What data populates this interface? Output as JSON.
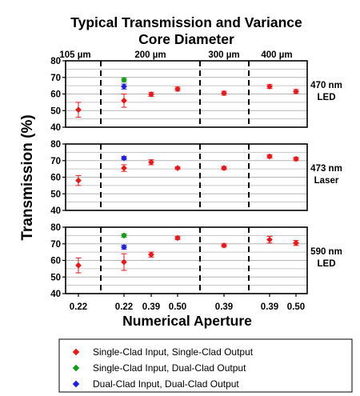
{
  "chart_data": {
    "type": "scatter",
    "title": [
      "Typical Transmission and Variance",
      "Core Diameter"
    ],
    "ylabel": "Transmission (%)",
    "xlabel": "Numerical Aperture",
    "ylim": [
      40,
      80
    ],
    "yticks": [
      "40",
      "50",
      "60",
      "70",
      "80"
    ],
    "grid": true,
    "core_diameters": [
      "105 µm",
      "200 µm",
      "300 µm",
      "400 µm"
    ],
    "categories": [
      "0.22",
      "0.22",
      "0.39",
      "0.50",
      "0.39",
      "0.39",
      "0.50"
    ],
    "panels": [
      {
        "label": [
          "470 nm",
          "LED"
        ],
        "series": [
          {
            "name": "Single-Clad Input, Single-Clad Output",
            "color": "#e31a1c",
            "marker": "diamond",
            "points": [
              {
                "cat": 0,
                "y": 50.5,
                "err": 4.5
              },
              {
                "cat": 1,
                "y": 56,
                "err": 4
              },
              {
                "cat": 2,
                "y": 59.8,
                "err": 1.2
              },
              {
                "cat": 3,
                "y": 63,
                "err": 1.2
              },
              {
                "cat": 4,
                "y": 60.5,
                "err": 1.2
              },
              {
                "cat": 5,
                "y": 64.5,
                "err": 1.2
              },
              {
                "cat": 6,
                "y": 61.5,
                "err": 1.2
              }
            ]
          },
          {
            "name": "Single-Clad Input, Dual-Clad Output",
            "color": "#1a9a1a",
            "marker": "diamond",
            "points": [
              {
                "cat": 1,
                "y": 68.5,
                "err": 1.2
              }
            ]
          },
          {
            "name": "Dual-Clad Input, Dual-Clad Output",
            "color": "#1f1fd6",
            "marker": "diamond",
            "points": [
              {
                "cat": 1,
                "y": 64.5,
                "err": 1.5
              }
            ]
          }
        ]
      },
      {
        "label": [
          "473 nm",
          "Laser"
        ],
        "series": [
          {
            "name": "Single-Clad Input, Single-Clad Output",
            "color": "#e31a1c",
            "marker": "diamond",
            "points": [
              {
                "cat": 0,
                "y": 58,
                "err": 3
              },
              {
                "cat": 1,
                "y": 65.5,
                "err": 2
              },
              {
                "cat": 2,
                "y": 69,
                "err": 1.5
              },
              {
                "cat": 3,
                "y": 65.5,
                "err": 0.8
              },
              {
                "cat": 4,
                "y": 65.5,
                "err": 1
              },
              {
                "cat": 5,
                "y": 72.5,
                "err": 1
              },
              {
                "cat": 6,
                "y": 71,
                "err": 1
              }
            ]
          },
          {
            "name": "Single-Clad Input, Dual-Clad Output",
            "color": "#1a9a1a",
            "marker": "diamond",
            "points": []
          },
          {
            "name": "Dual-Clad Input, Dual-Clad Output",
            "color": "#1f1fd6",
            "marker": "diamond",
            "points": [
              {
                "cat": 1,
                "y": 71.5,
                "err": 1
              }
            ]
          }
        ]
      },
      {
        "label": [
          "590 nm",
          "LED"
        ],
        "series": [
          {
            "name": "Single-Clad Input, Single-Clad Output",
            "color": "#e31a1c",
            "marker": "diamond",
            "points": [
              {
                "cat": 0,
                "y": 57,
                "err": 4.5
              },
              {
                "cat": 1,
                "y": 59,
                "err": 5
              },
              {
                "cat": 2,
                "y": 63.5,
                "err": 1.5
              },
              {
                "cat": 3,
                "y": 73.5,
                "err": 1
              },
              {
                "cat": 4,
                "y": 69,
                "err": 1
              },
              {
                "cat": 5,
                "y": 72.5,
                "err": 2
              },
              {
                "cat": 6,
                "y": 70.5,
                "err": 1.5
              }
            ]
          },
          {
            "name": "Single-Clad Input, Dual-Clad Output",
            "color": "#1a9a1a",
            "marker": "diamond",
            "points": [
              {
                "cat": 1,
                "y": 75,
                "err": 1
              }
            ]
          },
          {
            "name": "Dual-Clad Input, Dual-Clad Output",
            "color": "#1f1fd6",
            "marker": "diamond",
            "points": [
              {
                "cat": 1,
                "y": 68,
                "err": 1.2
              }
            ]
          }
        ]
      }
    ],
    "legend": [
      {
        "label": "Single-Clad Input, Single-Clad Output",
        "color": "#e31a1c"
      },
      {
        "label": "Single-Clad Input, Dual-Clad Output",
        "color": "#1a9a1a"
      },
      {
        "label": "Dual-Clad Input, Dual-Clad Output",
        "color": "#1f1fd6"
      }
    ]
  }
}
